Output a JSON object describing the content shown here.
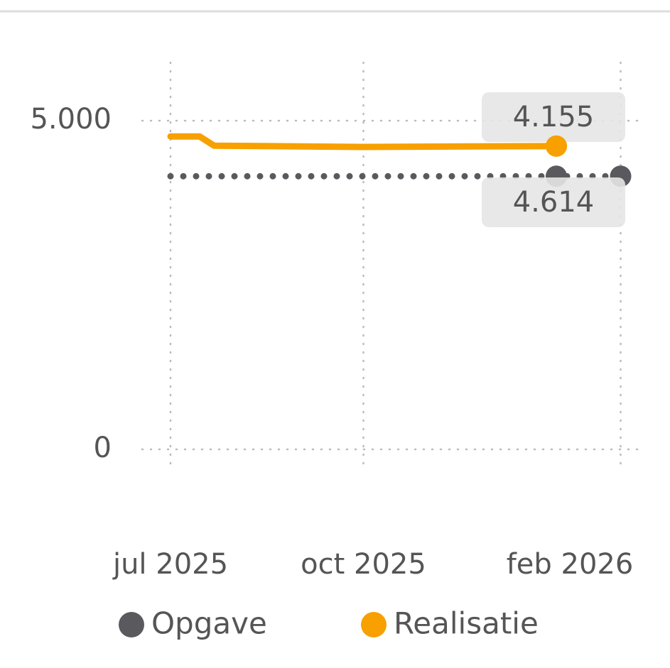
{
  "chart_data": {
    "type": "line",
    "series": [
      {
        "name": "Opgave",
        "color": "#5a5a5e",
        "x": [
          "2025-07-01",
          "2026-01-01",
          "2026-02-01"
        ],
        "values": [
          4155,
          4155,
          4155
        ],
        "value_labels": [
          null,
          null,
          "4.155"
        ]
      },
      {
        "name": "Realisatie",
        "color": "#f7a000",
        "x": [
          "2025-07-01",
          "2025-07-15",
          "2025-07-22",
          "2025-10-01",
          "2025-12-01",
          "2026-01-01"
        ],
        "values": [
          4760,
          4760,
          4620,
          4600,
          4610,
          4614
        ],
        "value_labels": [
          null,
          null,
          null,
          null,
          null,
          "4.614"
        ]
      }
    ],
    "ylim": [
      0,
      5000
    ],
    "yticks": [
      0,
      {
        "value": 5000,
        "label": "5.000"
      }
    ],
    "xticks": [
      {
        "value": "2025-07-01",
        "label": "jul 2025"
      },
      {
        "value": "2025-10-01",
        "label": "oct 2025"
      },
      {
        "value": "2026-02-01",
        "label": "feb 2026"
      }
    ],
    "grid": true,
    "legend": "bottom"
  }
}
